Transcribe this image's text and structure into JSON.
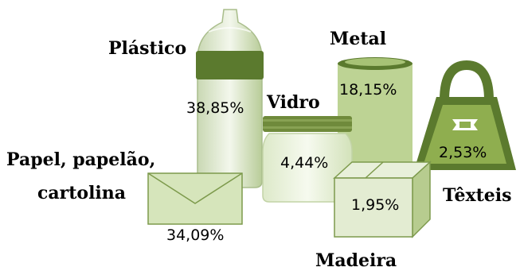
{
  "chart_data": {
    "type": "pictorial",
    "title": "",
    "unit": "%",
    "categories": [
      {
        "name": "Plástico",
        "value": "38,85%",
        "icon": "plastic-bottle-icon"
      },
      {
        "name": "Papel, papelão, cartolina",
        "lines": [
          "Papel, papelão,",
          "cartolina"
        ],
        "value": "34,09%",
        "icon": "envelope-icon"
      },
      {
        "name": "Metal",
        "value": "18,15%",
        "icon": "can-icon"
      },
      {
        "name": "Vidro",
        "value": "4,44%",
        "icon": "glass-jar-icon"
      },
      {
        "name": "Têxteis",
        "value": "2,53%",
        "icon": "bag-icon"
      },
      {
        "name": "Madeira",
        "value": "1,95%",
        "icon": "wooden-box-icon"
      }
    ],
    "values": [
      38.85,
      34.09,
      18.15,
      4.44,
      2.53,
      1.95
    ]
  },
  "colors": {
    "dark_green": "#5b7a2e",
    "mid_green": "#8fae4f",
    "light_green": "#c5d9a0",
    "pale_green": "#e6efd6"
  }
}
